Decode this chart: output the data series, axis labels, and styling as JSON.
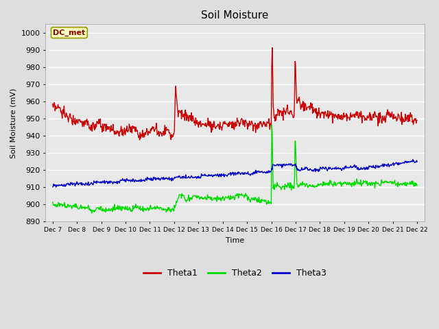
{
  "title": "Soil Moisture",
  "ylabel": "Soil Moisture (mV)",
  "xlabel": "Time",
  "annotation": "DC_met",
  "ylim": [
    890,
    1005
  ],
  "yticks": [
    890,
    900,
    910,
    920,
    930,
    940,
    950,
    960,
    970,
    980,
    990,
    1000
  ],
  "x_labels": [
    "Dec 7",
    "Dec 8",
    "Dec 9",
    "Dec 10",
    "Dec 11",
    "Dec 12",
    "Dec 13",
    "Dec 14",
    "Dec 15",
    "Dec 16",
    "Dec 17",
    "Dec 18",
    "Dec 19",
    "Dec 20",
    "Dec 21",
    "Dec 22"
  ],
  "theta1_color": "#CC0000",
  "theta2_color": "#00DD00",
  "theta3_color": "#0000CC",
  "fig_bg_color": "#DEDEDE",
  "plot_bg_color": "#E8E8E8",
  "grid_color": "#FFFFFF",
  "legend_entries": [
    "Theta1",
    "Theta2",
    "Theta3"
  ]
}
